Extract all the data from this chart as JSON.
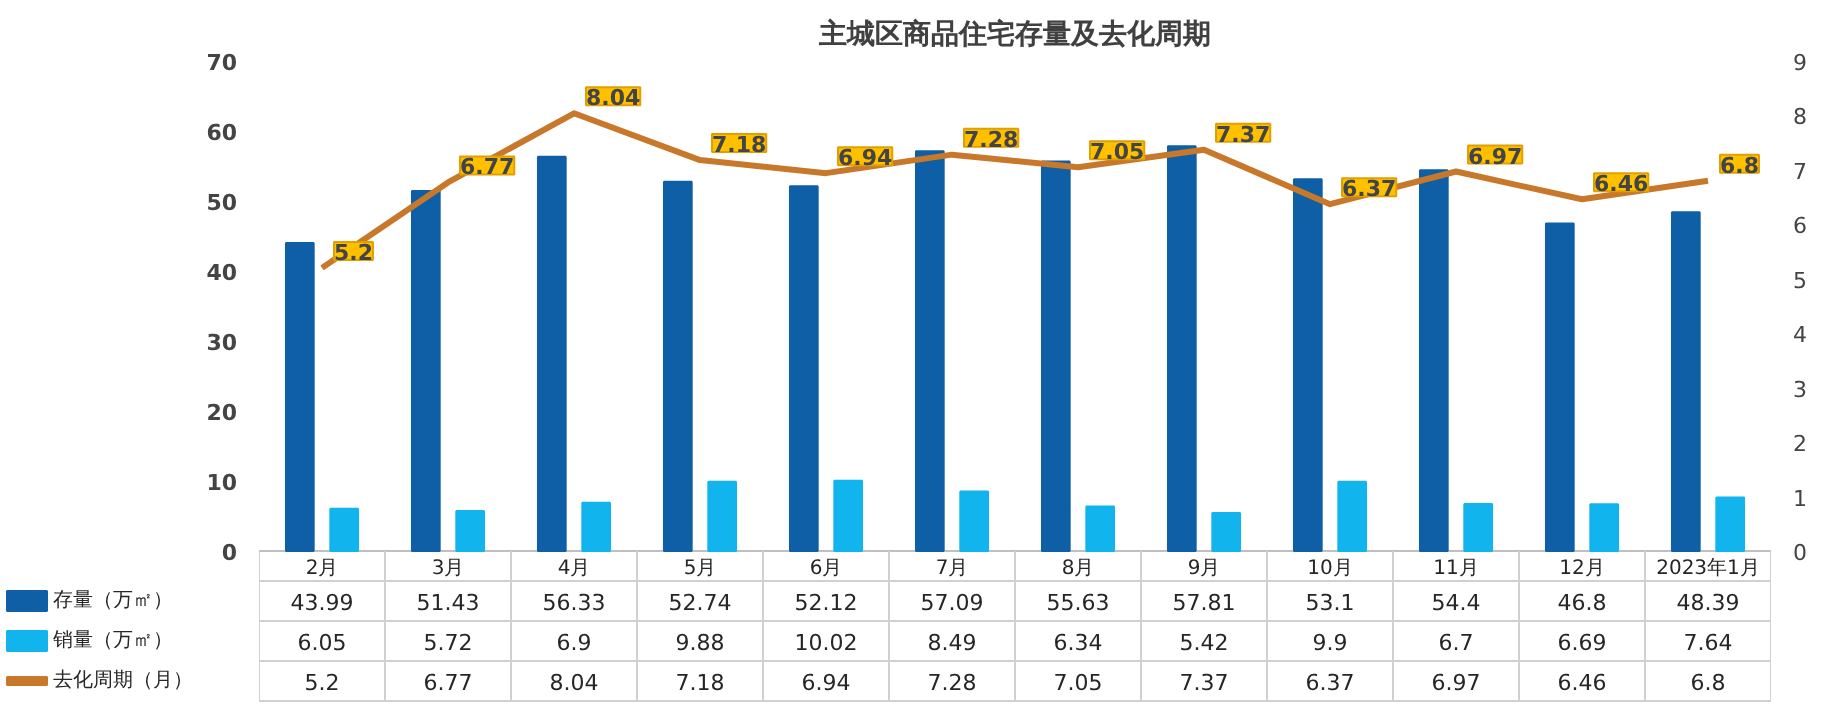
{
  "chart_data": {
    "type": "bar",
    "title": "主城区商品住宅存量及去化周期",
    "categories": [
      "2月",
      "3月",
      "4月",
      "5月",
      "6月",
      "7月",
      "8月",
      "9月",
      "10月",
      "11月",
      "12月",
      "2023年1月"
    ],
    "series": [
      {
        "name": "存量（万㎡）",
        "color": "#0f5fa6",
        "values": [
          43.99,
          51.43,
          56.33,
          52.74,
          52.12,
          57.09,
          55.63,
          57.81,
          53.1,
          54.4,
          46.8,
          48.39
        ]
      },
      {
        "name": "销量（万㎡）",
        "color": "#12b4ee",
        "values": [
          6.05,
          5.72,
          6.9,
          9.88,
          10.02,
          8.49,
          6.34,
          5.42,
          9.9,
          6.7,
          6.69,
          7.64
        ]
      },
      {
        "name": "去化周期（月）",
        "type": "line",
        "axis": "y2",
        "color": "#c8782a",
        "values": [
          5.2,
          6.77,
          8.04,
          7.18,
          6.94,
          7.28,
          7.05,
          7.37,
          6.37,
          6.97,
          6.46,
          6.8
        ]
      }
    ],
    "annotations": [
      "5.2",
      "6.77",
      "8.04",
      "7.18",
      "6.94",
      "7.28",
      "7.05",
      "7.37",
      "6.37",
      "6.97",
      "6.46",
      "6.8"
    ],
    "ylim": [
      0,
      70
    ],
    "yticks": [
      0,
      10,
      20,
      30,
      40,
      50,
      60,
      70
    ],
    "y2lim": [
      0,
      9
    ],
    "y2ticks": [
      0,
      1,
      2,
      3,
      4,
      5,
      6,
      7,
      8,
      9
    ],
    "data_labels": true,
    "legend": "bottom",
    "grid": false,
    "marker": "none",
    "line_style": "solid"
  }
}
